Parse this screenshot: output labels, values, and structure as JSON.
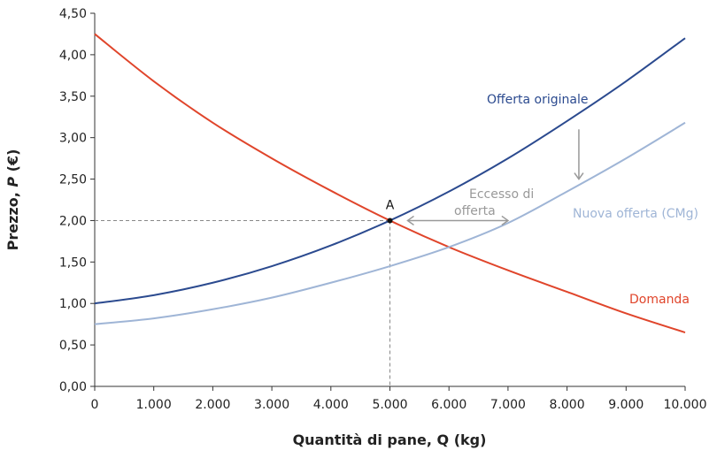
{
  "chart_data": {
    "type": "line",
    "title": "",
    "xlabel": "Quantità di pane, Q (kg)",
    "ylabel_prefix": "Prezzo, ",
    "ylabel_italic": "P",
    "ylabel_suffix": " (€)",
    "xlim": [
      0,
      10000
    ],
    "ylim": [
      0,
      4.5
    ],
    "grid": false,
    "x_ticks": [
      0,
      1000,
      2000,
      3000,
      4000,
      5000,
      6000,
      7000,
      8000,
      9000,
      10000
    ],
    "x_tick_labels": [
      "0",
      "1.000",
      "2.000",
      "3.000",
      "4.000",
      "5.000",
      "6.000",
      "7.000",
      "8.000",
      "9.000",
      "10.000"
    ],
    "y_ticks": [
      0,
      0.5,
      1,
      1.5,
      2,
      2.5,
      3,
      3.5,
      4,
      4.5
    ],
    "y_tick_labels": [
      "0,00",
      "0,50",
      "1,00",
      "1,50",
      "2,00",
      "2,50",
      "3,00",
      "3,50",
      "4,00",
      "4,50"
    ],
    "x": [
      0,
      1000,
      2000,
      3000,
      4000,
      5000,
      6000,
      7000,
      8000,
      9000,
      10000
    ],
    "series": [
      {
        "name": "Domanda",
        "color": "#e0452b",
        "values": [
          4.25,
          3.68,
          3.18,
          2.75,
          2.36,
          2.0,
          1.68,
          1.4,
          1.14,
          0.88,
          0.65
        ]
      },
      {
        "name": "Offerta originale",
        "color": "#2b4a8f",
        "values": [
          1.0,
          1.1,
          1.25,
          1.45,
          1.7,
          2.0,
          2.35,
          2.75,
          3.2,
          3.68,
          4.2
        ]
      },
      {
        "name": "Nuova offerta (CMg)",
        "color": "#9fb5d6",
        "values": [
          0.75,
          0.82,
          0.93,
          1.07,
          1.25,
          1.45,
          1.68,
          1.97,
          2.35,
          2.75,
          3.18
        ]
      }
    ],
    "annotations": {
      "point_label": "A",
      "point": [
        5000,
        2.0
      ],
      "excess_label_line1": "Eccesso di",
      "excess_label_line2": "offerta",
      "excess_arrow": {
        "from": [
          5300,
          2.0
        ],
        "to": [
          7000,
          2.0
        ]
      },
      "shift_arrow": {
        "from": [
          8200,
          3.1
        ],
        "to": [
          8200,
          2.5
        ]
      },
      "annotation_color": "#999999"
    }
  }
}
